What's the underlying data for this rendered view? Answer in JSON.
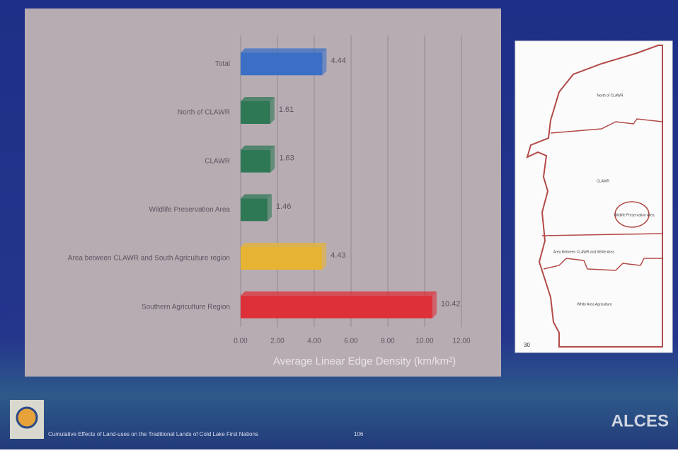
{
  "chart_data": {
    "type": "barh",
    "categories": [
      "Total",
      "North of CLAWR",
      "CLAWR",
      "Wildlife Preservation Area",
      "Area between CLAWR and South Agriculture region",
      "Southern Agriculture Region"
    ],
    "values": [
      4.44,
      1.61,
      1.63,
      1.46,
      4.43,
      10.42
    ],
    "colors": [
      "#3b6fc6",
      "#2f7856",
      "#2f7856",
      "#2f7856",
      "#e6b432",
      "#de3038"
    ],
    "xlabel": "Average Linear Edge Density (km/km²)",
    "xlim": [
      0,
      12
    ],
    "xticks": [
      {
        "value": 0,
        "label": "0.00"
      },
      {
        "value": 2,
        "label": "2.00"
      },
      {
        "value": 4,
        "label": "4.00"
      },
      {
        "value": 6,
        "label": "6.00"
      },
      {
        "value": 8,
        "label": "8.00"
      },
      {
        "value": 10,
        "label": "10.00"
      },
      {
        "value": 12,
        "label": "12.00"
      }
    ],
    "grid": true
  },
  "map": {
    "regions": [
      "North of CLAWR",
      "CLAWR",
      "Wildlife Preservation Area",
      "Area Between CLAWR and White Area",
      "White Area Agriculture"
    ],
    "page": "30"
  },
  "footer": {
    "caption": "Cumulative Effects of Land-uses on the Traditional Lands of Cold Lake First Nations",
    "page": "106",
    "logo": "ALCES"
  }
}
